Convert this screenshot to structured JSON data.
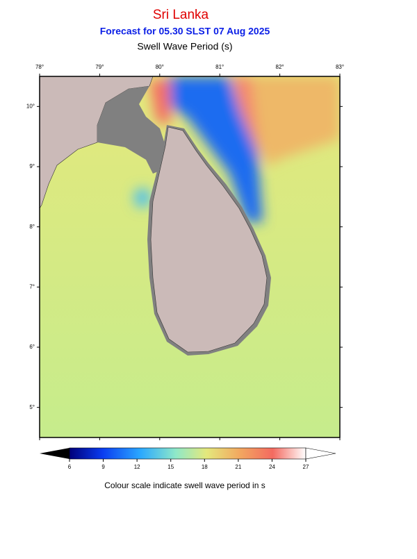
{
  "title": "Sri Lanka",
  "subtitle": "Forecast for  05.30 SLST 07 Aug 2025",
  "variable": "Swell Wave Period (s)",
  "map": {
    "xlim": [
      78,
      83
    ],
    "ylim": [
      4.5,
      10.5
    ],
    "xticks": [
      {
        "value": 78,
        "label": "78°"
      },
      {
        "value": 79,
        "label": "79°"
      },
      {
        "value": 80,
        "label": "80°"
      },
      {
        "value": 81,
        "label": "81°"
      },
      {
        "value": 82,
        "label": "82°"
      },
      {
        "value": 83,
        "label": "83°"
      }
    ],
    "yticks": [
      {
        "value": 5,
        "label": "5°"
      },
      {
        "value": 6,
        "label": "6°"
      },
      {
        "value": 7,
        "label": "7°"
      },
      {
        "value": 8,
        "label": "8°"
      },
      {
        "value": 9,
        "label": "9°"
      },
      {
        "value": 10,
        "label": "10°"
      }
    ]
  },
  "colorbar": {
    "lim": [
      6,
      27
    ],
    "ticks": [
      6,
      9,
      12,
      15,
      18,
      21,
      24,
      27
    ],
    "caption": "Colour scale indicate swell wave period in s"
  }
}
